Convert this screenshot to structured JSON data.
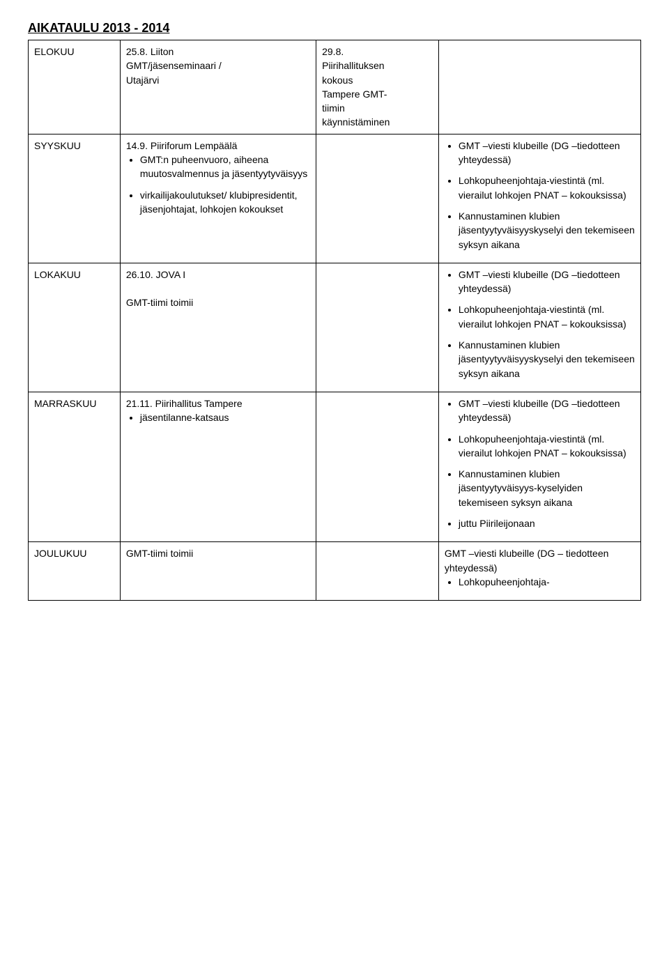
{
  "title": "AIKATAULU 2013 - 2014",
  "rows": {
    "elokuu": {
      "month": "ELOKUU",
      "c1_line1": "25.8. Liiton",
      "c1_line2": "GMT/jäsenseminaari /",
      "c1_line3": "Utajärvi",
      "c2_line1": "29.8.",
      "c2_line2": "Piirihallituksen",
      "c2_line3": "kokous",
      "c2_line4": "Tampere GMT-",
      "c2_line5": "tiimin",
      "c2_line6": "käynnistäminen"
    },
    "syyskuu": {
      "month": "SYYSKUU",
      "c1_line1": "14.9. Piiriforum Lempäälä",
      "c1_b1": "GMT:n puheenvuoro, aiheena muutosvalmennus ja jäsentyytyväisyys",
      "c1_b2": "virkailijakoulutukset/ klubipresidentit, jäsenjohtajat, lohkojen kokoukset",
      "c3_b1": "GMT –viesti klubeille (DG –tiedotteen yhteydessä)",
      "c3_b2": "Lohkopuheenjohtaja-viestintä (ml. vierailut lohkojen PNAT – kokouksissa)",
      "c3_b3": "Kannustaminen klubien jäsentyytyväisyyskyselyi den tekemiseen syksyn aikana"
    },
    "lokakuu": {
      "month": "LOKAKUU",
      "c1_line1": "26.10. JOVA I",
      "c1_line2": "GMT-tiimi toimii",
      "c3_b1": "GMT –viesti klubeille (DG –tiedotteen yhteydessä)",
      "c3_b2": "Lohkopuheenjohtaja-viestintä (ml. vierailut lohkojen PNAT – kokouksissa)",
      "c3_b3": "Kannustaminen klubien jäsentyytyväisyyskyselyi den tekemiseen syksyn aikana"
    },
    "marraskuu": {
      "month": "MARRASKUU",
      "c1_line1": "21.11. Piirihallitus Tampere",
      "c1_b1": "jäsentilanne-katsaus",
      "c3_b1": "GMT –viesti klubeille (DG –tiedotteen yhteydessä)",
      "c3_b2": "Lohkopuheenjohtaja-viestintä (ml. vierailut lohkojen PNAT – kokouksissa)",
      "c3_b3": "Kannustaminen klubien jäsentyytyväisyys-kyselyiden tekemiseen syksyn aikana",
      "c3_b4": "juttu Piirileijonaan"
    },
    "joulukuu": {
      "month": "JOULUKUU",
      "c1_line1": "GMT-tiimi toimii",
      "c3_line1": "GMT –viesti klubeille (DG – tiedotteen yhteydessä)",
      "c3_b1": "Lohkopuheenjohtaja-"
    }
  }
}
